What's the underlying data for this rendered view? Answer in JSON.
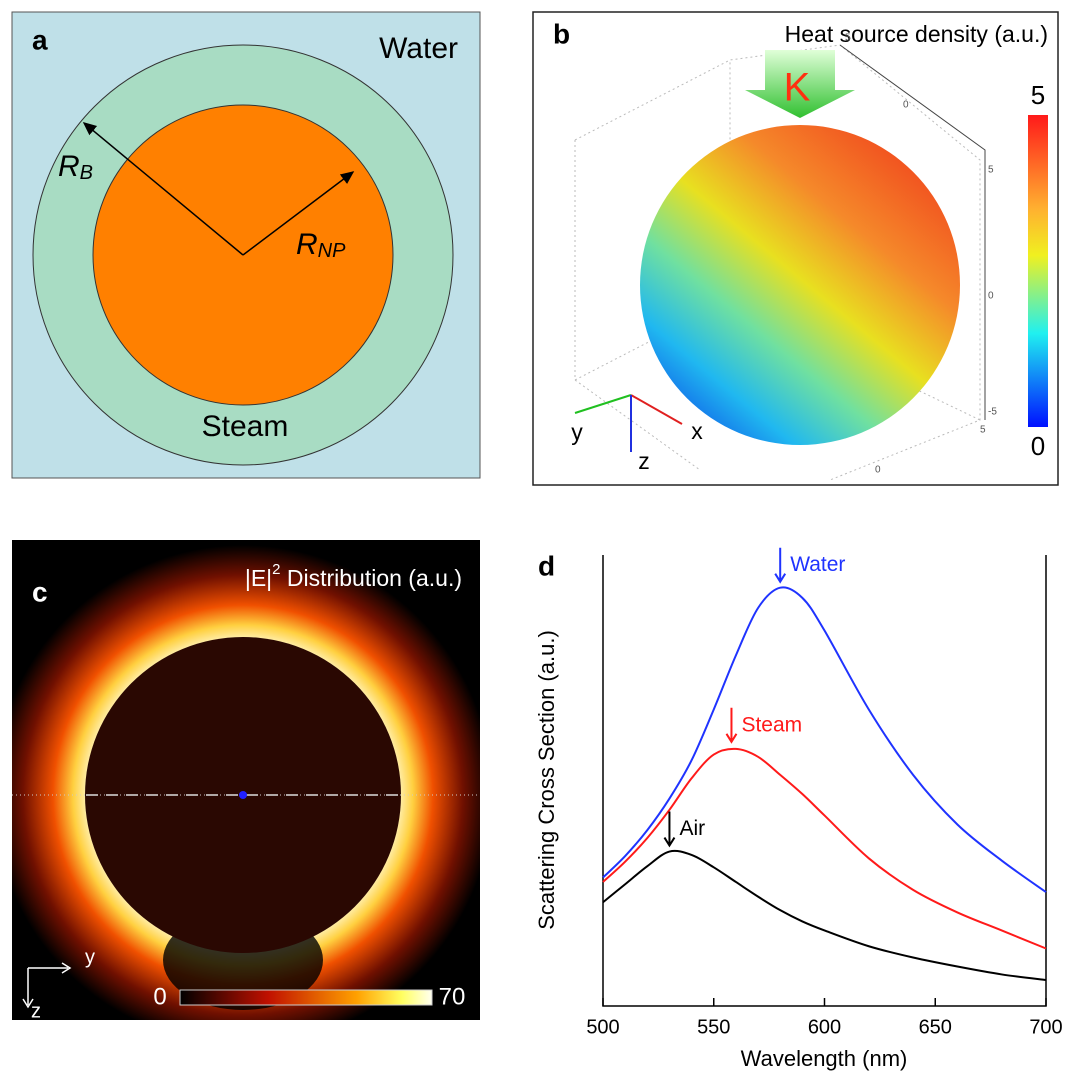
{
  "panels": {
    "a": {
      "label": "a",
      "outer_medium": "Water",
      "bubble_medium": "Steam",
      "bubble_radius": {
        "symbol": "R",
        "subscript": "B"
      },
      "particle_radius": {
        "symbol": "R",
        "subscript": "NP"
      }
    },
    "b": {
      "label": "b",
      "title": "Heat source density (a.u.)",
      "wavevector": "K",
      "colorbar_max": "5",
      "colorbar_min": "0",
      "axes": [
        "x",
        "y",
        "z"
      ],
      "box_tick_labels": [
        "5",
        "0",
        "5",
        "0",
        "-5",
        "5",
        "0"
      ]
    },
    "c": {
      "label": "c",
      "title_main": "|E|",
      "title_sup": "2",
      "title_rest": " Distribution (a.u.)",
      "colorbar_min": "0",
      "colorbar_max": "70",
      "axes": [
        "y",
        "z"
      ]
    }
  },
  "chart_data": {
    "type": "line",
    "panel_label": "d",
    "x_label": "Wavelength (nm)",
    "y_label": "Scattering Cross Section (a.u.)",
    "x": [
      500,
      510,
      520,
      530,
      540,
      550,
      560,
      570,
      580,
      590,
      600,
      620,
      640,
      660,
      680,
      700
    ],
    "series": [
      {
        "name": "Water",
        "color": "#1f33ff",
        "values": [
          1.14,
          1.33,
          1.56,
          1.84,
          2.18,
          2.63,
          3.11,
          3.53,
          3.71,
          3.62,
          3.33,
          2.63,
          2.05,
          1.61,
          1.29,
          1.01
        ]
      },
      {
        "name": "Steam",
        "color": "#ff1a1a",
        "values": [
          1.1,
          1.28,
          1.49,
          1.74,
          2.02,
          2.23,
          2.28,
          2.21,
          2.05,
          1.88,
          1.69,
          1.31,
          1.03,
          0.83,
          0.67,
          0.51
        ]
      },
      {
        "name": "Air",
        "color": "#000000",
        "values": [
          0.92,
          1.08,
          1.24,
          1.37,
          1.34,
          1.23,
          1.1,
          0.97,
          0.85,
          0.75,
          0.67,
          0.53,
          0.43,
          0.35,
          0.28,
          0.23
        ]
      }
    ],
    "annotations": [
      {
        "text": "Water",
        "x": 580,
        "y": 3.71,
        "color": "#1f33ff"
      },
      {
        "text": "Steam",
        "x": 558,
        "y": 2.29,
        "color": "#ff1a1a"
      },
      {
        "text": "Air",
        "x": 530,
        "y": 1.37,
        "color": "#000000"
      }
    ],
    "xlim": [
      500,
      700
    ],
    "xticks": [
      500,
      550,
      600,
      650,
      700
    ],
    "ylim": [
      0,
      4
    ]
  }
}
